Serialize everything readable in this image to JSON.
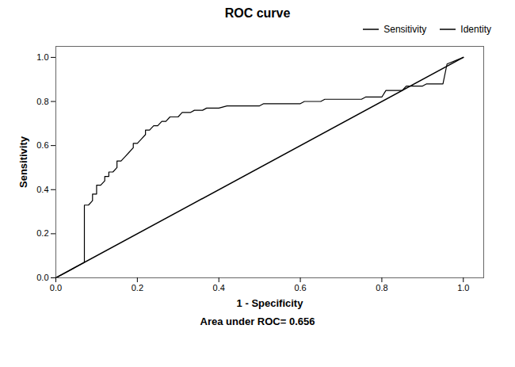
{
  "chart_data": {
    "type": "line",
    "title": "ROC curve",
    "xlabel": "1 - Specificity",
    "ylabel": "Sensitivity",
    "annotation": "Area under ROC= 0.656",
    "xlim": [
      0.0,
      1.05
    ],
    "ylim": [
      0.0,
      1.05
    ],
    "xticks": [
      {
        "value": 0.0,
        "label": "0.0"
      },
      0.2,
      0.4,
      0.6,
      0.8,
      {
        "value": 1.0,
        "label": "1.0"
      }
    ],
    "yticks": [
      {
        "value": 0.0,
        "label": "0.0"
      },
      0.2,
      0.4,
      0.6,
      0.8,
      {
        "value": 1.0,
        "label": "1.0"
      }
    ],
    "legend": "upper right",
    "series": [
      {
        "name": "Sensitivity",
        "color": "#000000",
        "x": [
          0.0,
          0.01,
          0.02,
          0.03,
          0.04,
          0.05,
          0.06,
          0.07,
          0.07,
          0.08,
          0.09,
          0.09,
          0.1,
          0.1,
          0.11,
          0.12,
          0.12,
          0.13,
          0.13,
          0.14,
          0.15,
          0.15,
          0.16,
          0.17,
          0.18,
          0.19,
          0.19,
          0.2,
          0.21,
          0.22,
          0.22,
          0.23,
          0.24,
          0.25,
          0.26,
          0.27,
          0.28,
          0.3,
          0.31,
          0.33,
          0.34,
          0.36,
          0.37,
          0.4,
          0.42,
          0.5,
          0.51,
          0.6,
          0.61,
          0.65,
          0.66,
          0.75,
          0.76,
          0.8,
          0.81,
          0.85,
          0.86,
          0.9,
          0.91,
          0.95,
          0.96,
          1.0
        ],
        "values": [
          0.0,
          0.01,
          0.02,
          0.03,
          0.04,
          0.05,
          0.06,
          0.07,
          0.33,
          0.33,
          0.35,
          0.38,
          0.38,
          0.42,
          0.42,
          0.44,
          0.46,
          0.46,
          0.48,
          0.48,
          0.5,
          0.53,
          0.53,
          0.55,
          0.57,
          0.59,
          0.61,
          0.61,
          0.63,
          0.65,
          0.67,
          0.67,
          0.69,
          0.69,
          0.71,
          0.71,
          0.73,
          0.73,
          0.75,
          0.75,
          0.76,
          0.76,
          0.77,
          0.77,
          0.78,
          0.78,
          0.79,
          0.79,
          0.8,
          0.8,
          0.81,
          0.81,
          0.82,
          0.82,
          0.85,
          0.85,
          0.87,
          0.87,
          0.88,
          0.88,
          0.97,
          1.0
        ]
      },
      {
        "name": "Identity",
        "color": "#000000",
        "x": [
          0,
          1
        ],
        "values": [
          0,
          1
        ]
      }
    ]
  }
}
